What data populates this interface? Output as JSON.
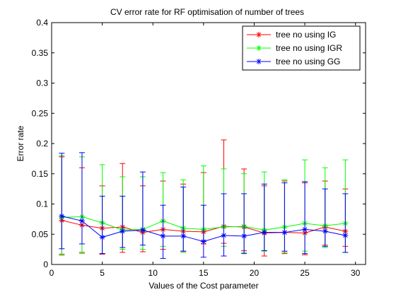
{
  "chart_data": {
    "type": "line",
    "title": "CV error rate for RF optimisation of number of trees",
    "xlabel": "Values of the Cost parameter",
    "ylabel": "Error rate",
    "xlim": [
      0,
      31
    ],
    "ylim": [
      0,
      0.4
    ],
    "x_ticks": [
      0,
      5,
      10,
      15,
      20,
      25,
      30
    ],
    "y_ticks": [
      0,
      0.05,
      0.1,
      0.15,
      0.2,
      0.25,
      0.3,
      0.35,
      0.4
    ],
    "x_tick_labels": [
      "0",
      "5",
      "10",
      "15",
      "20",
      "25",
      "30"
    ],
    "y_tick_labels": [
      "0",
      "0.05",
      "0.1",
      "0.15",
      "0.2",
      "0.25",
      "0.3",
      "0.35",
      "0.4"
    ],
    "grid": false,
    "legend_position": "top-right",
    "x": [
      1,
      3,
      5,
      7,
      9,
      11,
      13,
      15,
      17,
      19,
      21,
      23,
      25,
      27,
      29
    ],
    "series": [
      {
        "name": "tree no using IG",
        "color": "#ff0000",
        "marker": "asterisk",
        "values": [
          0.073,
          0.065,
          0.06,
          0.062,
          0.053,
          0.058,
          0.055,
          0.054,
          0.063,
          0.062,
          0.052,
          0.053,
          0.052,
          0.062,
          0.055
        ],
        "upper": [
          0.178,
          0.16,
          0.13,
          0.167,
          0.13,
          0.138,
          0.133,
          0.152,
          0.206,
          0.158,
          0.13,
          0.138,
          0.135,
          0.138,
          0.125
        ],
        "lower": [
          0.017,
          0.02,
          0.017,
          0.02,
          0.021,
          0.025,
          0.022,
          0.034,
          0.035,
          0.023,
          0.014,
          0.018,
          0.016,
          0.032,
          0.03
        ]
      },
      {
        "name": "tree no using IGR",
        "color": "#00ff00",
        "marker": "asterisk",
        "values": [
          0.078,
          0.079,
          0.069,
          0.057,
          0.058,
          0.072,
          0.06,
          0.058,
          0.062,
          0.063,
          0.057,
          0.062,
          0.068,
          0.064,
          0.068
        ],
        "upper": [
          0.18,
          0.178,
          0.165,
          0.145,
          0.145,
          0.152,
          0.14,
          0.163,
          0.158,
          0.15,
          0.153,
          0.14,
          0.173,
          0.16,
          0.173
        ],
        "lower": [
          0.015,
          0.018,
          0.018,
          0.025,
          0.025,
          0.03,
          0.02,
          0.038,
          0.03,
          0.02,
          0.022,
          0.02,
          0.022,
          0.028,
          0.02
        ]
      },
      {
        "name": "tree no using GG",
        "color": "#0000ff",
        "marker": "asterisk",
        "values": [
          0.08,
          0.072,
          0.045,
          0.055,
          0.057,
          0.047,
          0.047,
          0.038,
          0.048,
          0.047,
          0.053,
          0.053,
          0.058,
          0.055,
          0.048
        ],
        "upper": [
          0.184,
          0.185,
          0.113,
          0.113,
          0.153,
          0.098,
          0.128,
          0.098,
          0.117,
          0.117,
          0.133,
          0.135,
          0.137,
          0.125,
          0.117
        ],
        "lower": [
          0.026,
          0.034,
          0.018,
          0.028,
          0.032,
          0.01,
          0.022,
          0.012,
          0.014,
          0.018,
          0.023,
          0.022,
          0.018,
          0.03,
          0.02
        ]
      }
    ]
  }
}
